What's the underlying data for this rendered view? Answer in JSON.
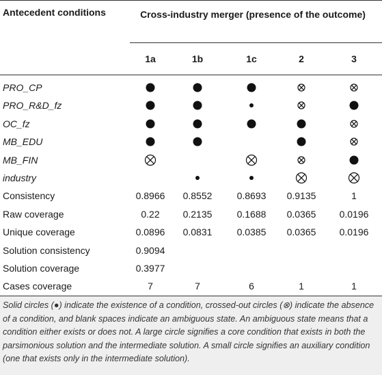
{
  "table": {
    "header": {
      "stub": "Antecedent conditions",
      "group": "Cross-industry merger (presence of the outcome)",
      "columns": [
        "1a",
        "1b",
        "1c",
        "2",
        "3"
      ]
    },
    "condition_rows": [
      {
        "label": "PRO_CP",
        "cells": [
          "present-core",
          "present-core",
          "present-core",
          "absent-aux",
          "absent-aux"
        ]
      },
      {
        "label": "PRO_R&D_fz",
        "cells": [
          "present-core",
          "present-core",
          "present-aux",
          "absent-aux",
          "present-core"
        ]
      },
      {
        "label": "OC_fz",
        "cells": [
          "present-core",
          "present-core",
          "present-core",
          "present-core",
          "absent-aux"
        ]
      },
      {
        "label": "MB_EDU",
        "cells": [
          "present-core",
          "present-core",
          null,
          "present-core",
          "absent-aux"
        ]
      },
      {
        "label": "MB_FIN",
        "cells": [
          "absent-core",
          null,
          "absent-core",
          "absent-aux",
          "present-core"
        ]
      },
      {
        "label": "industry",
        "cells": [
          null,
          "present-aux",
          "present-aux",
          "absent-core",
          "absent-core"
        ]
      }
    ],
    "metric_rows": [
      {
        "label": "Consistency",
        "cells": [
          0.8966,
          0.8552,
          0.8693,
          0.9135,
          1
        ]
      },
      {
        "label": "Raw coverage",
        "cells": [
          0.22,
          0.2135,
          0.1688,
          0.0365,
          0.0196
        ]
      },
      {
        "label": "Unique coverage",
        "cells": [
          0.0896,
          0.0831,
          0.0385,
          0.0365,
          0.0196
        ]
      },
      {
        "label": "Solution consistency",
        "cells": [
          0.9094,
          null,
          null,
          null,
          null
        ]
      },
      {
        "label": "Solution coverage",
        "cells": [
          0.3977,
          null,
          null,
          null,
          null
        ]
      },
      {
        "label": "Cases coverage",
        "cells": [
          7,
          7,
          6,
          1,
          1
        ]
      }
    ],
    "note": "Solid circles (●) indicate the existence of a condition, crossed-out circles (⊗) indicate the absence of a condition, and blank spaces indicate an ambiguous state. An ambiguous state means that a condition either exists or does not. A large circle signifies a core condition that exists in both the parsimonious solution and the intermediate solution. A small circle signifies an auxiliary condition (one that exists only in the intermediate solution)."
  }
}
